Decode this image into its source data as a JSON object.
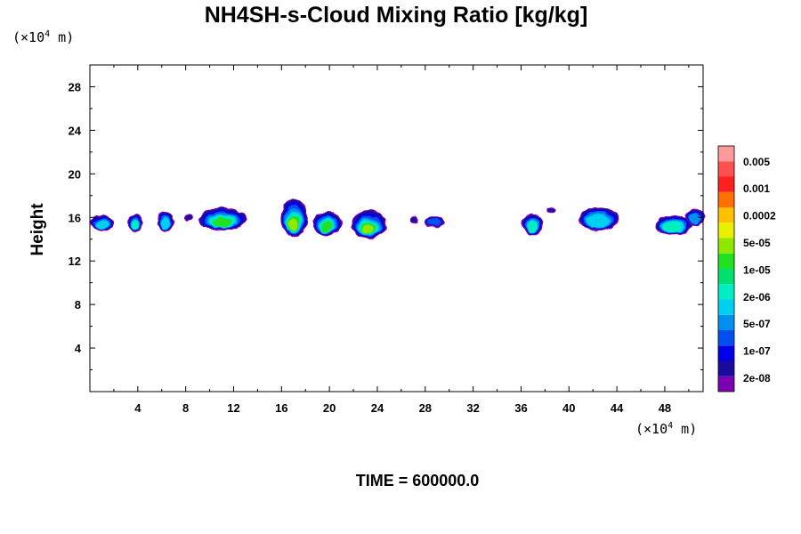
{
  "chart_data": {
    "type": "heatmap",
    "title": "NH4SH-s-Cloud Mixing Ratio [kg/kg]",
    "ylabel": "Height",
    "xunit": {
      "prefix": "(×10",
      "exp": "4",
      "suffix": " m)"
    },
    "yunit": {
      "prefix": "(×10",
      "exp": "4",
      "suffix": " m)"
    },
    "xlim": [
      0,
      51.2
    ],
    "ylim": [
      0,
      30
    ],
    "xticks": [
      4,
      8,
      12,
      16,
      20,
      24,
      28,
      32,
      36,
      40,
      44,
      48
    ],
    "yticks": [
      4,
      8,
      12,
      16,
      20,
      24,
      28
    ],
    "colorbar": {
      "colors": [
        "#7a00b0",
        "#1a0a9e",
        "#0000e8",
        "#0050f0",
        "#0090f0",
        "#00d0f0",
        "#00eec0",
        "#00e070",
        "#20e020",
        "#90e800",
        "#e8f000",
        "#ffc000",
        "#ff7000",
        "#ff2020",
        "#ff5050",
        "#ff9a9a"
      ],
      "labels": [
        "2e-08",
        "1e-07",
        "5e-07",
        "2e-06",
        "1e-05",
        "5e-05",
        "0.0002",
        "0.001",
        "0.005"
      ]
    },
    "clouds": [
      {
        "x": 0.15,
        "w": 1.7,
        "ybot": 14.8,
        "ytop": 16.1,
        "level": 0.55
      },
      {
        "x": 3.3,
        "w": 1.0,
        "ybot": 14.7,
        "ytop": 16.3,
        "level": 0.65
      },
      {
        "x": 5.7,
        "w": 1.3,
        "ybot": 14.9,
        "ytop": 16.4,
        "level": 0.6
      },
      {
        "x": 8.0,
        "w": 0.5,
        "ybot": 15.8,
        "ytop": 16.2,
        "level": 0.1
      },
      {
        "x": 9.2,
        "w": 3.8,
        "ybot": 14.9,
        "ytop": 16.8,
        "level": 0.82
      },
      {
        "x": 16.0,
        "w": 2.1,
        "ybot": 14.3,
        "ytop": 17.6,
        "level": 0.9
      },
      {
        "x": 18.7,
        "w": 2.2,
        "ybot": 14.4,
        "ytop": 16.5,
        "level": 0.75
      },
      {
        "x": 21.9,
        "w": 2.8,
        "ybot": 14.2,
        "ytop": 16.5,
        "level": 0.85
      },
      {
        "x": 26.9,
        "w": 0.4,
        "ybot": 15.5,
        "ytop": 16.0,
        "level": 0.05
      },
      {
        "x": 28.0,
        "w": 1.5,
        "ybot": 15.2,
        "ytop": 16.0,
        "level": 0.3
      },
      {
        "x": 36.2,
        "w": 1.5,
        "ybot": 14.5,
        "ytop": 16.2,
        "level": 0.65
      },
      {
        "x": 38.3,
        "w": 0.5,
        "ybot": 16.5,
        "ytop": 16.8,
        "level": 0.02
      },
      {
        "x": 40.9,
        "w": 3.2,
        "ybot": 14.9,
        "ytop": 16.8,
        "level": 0.55
      },
      {
        "x": 47.2,
        "w": 3.0,
        "ybot": 14.5,
        "ytop": 16.1,
        "level": 0.65
      },
      {
        "x": 49.8,
        "w": 1.4,
        "ybot": 15.3,
        "ytop": 16.7,
        "level": 0.45
      }
    ]
  },
  "footer": {
    "time_label": "TIME = 600000.0"
  }
}
